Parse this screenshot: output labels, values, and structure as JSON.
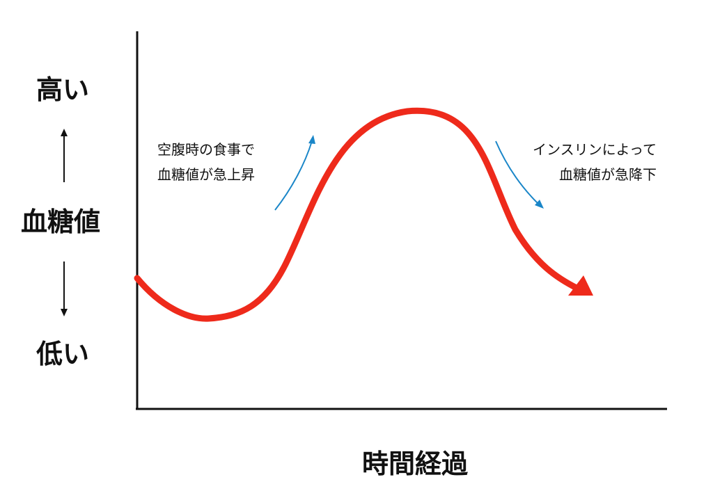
{
  "y_axis": {
    "title": "血糖値",
    "high_label": "高い",
    "low_label": "低い"
  },
  "x_axis": {
    "title": "時間経過"
  },
  "annotations": {
    "rise": {
      "line1": "空腹時の食事で",
      "line2": "血糖値が急上昇"
    },
    "fall": {
      "line1": "インスリンによって",
      "line2": "血糖値が急降下"
    }
  },
  "colors": {
    "curve": "#ee2a1b",
    "small_arrows": "#1a86c8",
    "axes": "#111111"
  },
  "icons": {
    "up_arrow": "arrow-up-icon",
    "down_arrow": "arrow-down-icon"
  }
}
